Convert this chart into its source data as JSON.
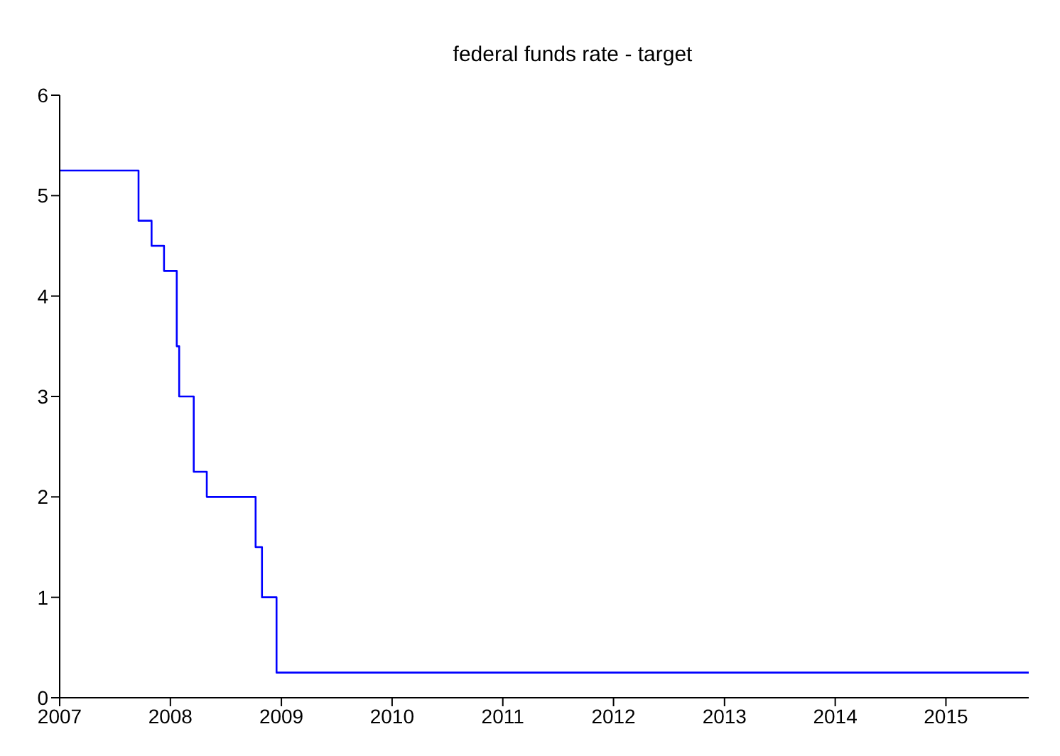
{
  "chart_data": {
    "type": "step",
    "title": "federal funds rate - target",
    "x": [
      "2007-01-01",
      "2007-09-18",
      "2007-10-31",
      "2007-12-11",
      "2008-01-22",
      "2008-01-30",
      "2008-03-18",
      "2008-04-30",
      "2008-10-08",
      "2008-10-29",
      "2008-12-16",
      "2015-10-01"
    ],
    "series": [
      {
        "color": "#0000ff",
        "values": [
          5.25,
          4.75,
          4.5,
          4.25,
          3.5,
          3,
          2.25,
          2,
          1.5,
          1,
          0.25,
          0.25
        ]
      }
    ],
    "xlim": [
      "2007-01-01",
      "2015-10-01"
    ],
    "xticks": [
      {
        "value": "2007-01-01",
        "label": "2007"
      },
      {
        "value": "2008-01-01",
        "label": "2008"
      },
      {
        "value": "2009-01-01",
        "label": "2009"
      },
      {
        "value": "2010-01-01",
        "label": "2010"
      },
      {
        "value": "2011-01-01",
        "label": "2011"
      },
      {
        "value": "2012-01-01",
        "label": "2012"
      },
      {
        "value": "2013-01-01",
        "label": "2013"
      },
      {
        "value": "2014-01-01",
        "label": "2014"
      },
      {
        "value": "2015-01-01",
        "label": "2015"
      }
    ],
    "ylim": [
      0,
      6
    ],
    "yticks": [
      0,
      1,
      2,
      3,
      4,
      5,
      6
    ],
    "grid": false,
    "legend": false
  }
}
